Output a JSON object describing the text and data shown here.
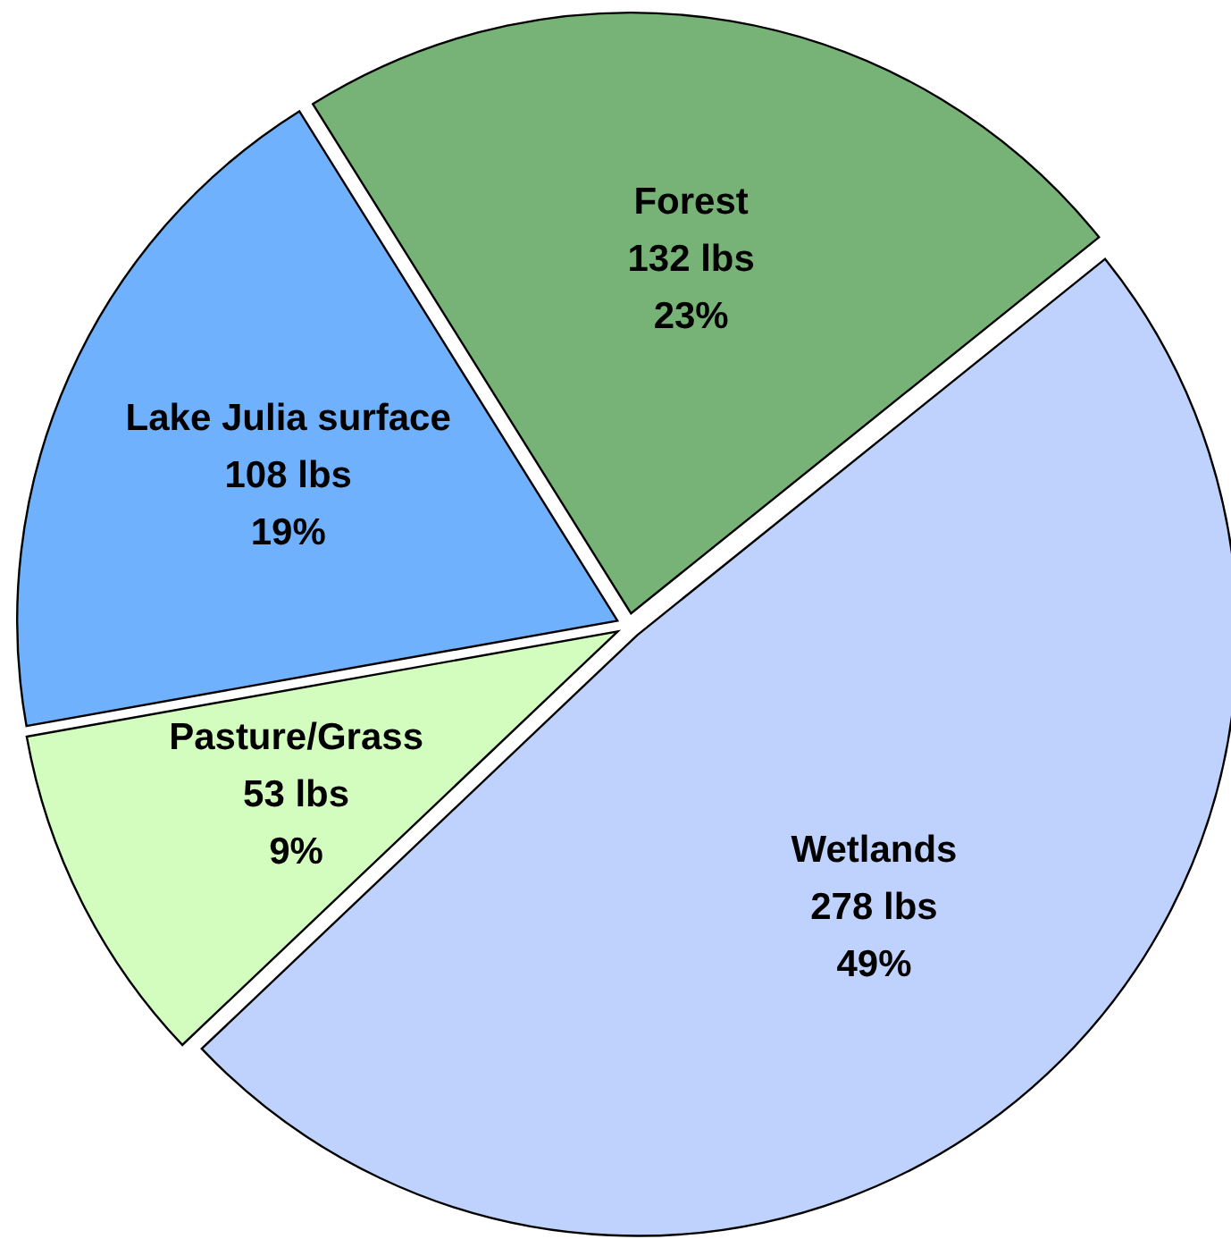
{
  "chart_data": {
    "type": "pie",
    "categories": [
      "Forest",
      "Wetlands",
      "Pasture/Grass",
      "Lake Julia surface"
    ],
    "values": [
      132,
      278,
      53,
      108
    ],
    "colors": [
      "#77b377",
      "#bfd2fd",
      "#d3fdbf",
      "#6fb1fc"
    ],
    "value_labels": [
      "132 lbs\n23%",
      "278 lbs\n49%",
      "53 lbs\n9%",
      "108 lbs\n19%"
    ]
  }
}
